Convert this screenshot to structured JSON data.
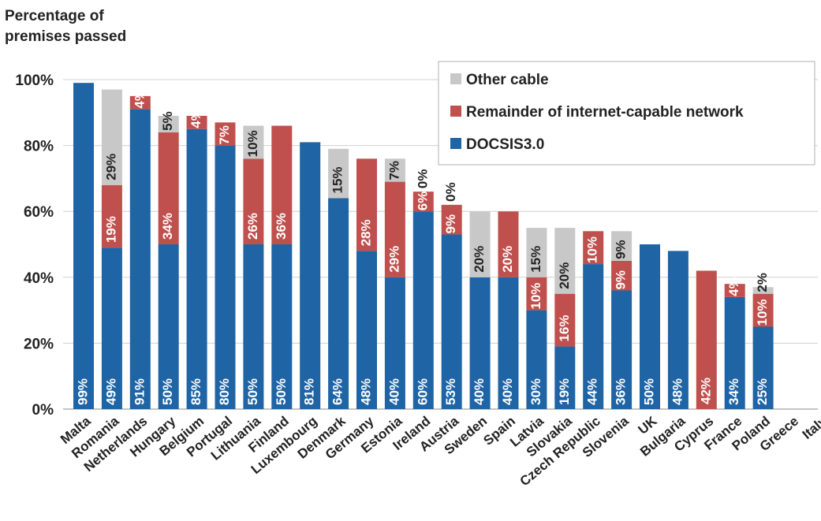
{
  "chart_data": {
    "type": "bar",
    "stacked": true,
    "ylabel_lines": [
      "Percentage of",
      "premises passed"
    ],
    "ylim": [
      0,
      100
    ],
    "yticks": [
      0,
      20,
      40,
      60,
      80,
      100
    ],
    "ytick_labels": [
      "0%",
      "20%",
      "40%",
      "60%",
      "80%",
      "100%"
    ],
    "grid": true,
    "legend_position": "top-right",
    "categories": [
      "Malta",
      "Romania",
      "Netherlands",
      "Hungary",
      "Belgium",
      "Portugal",
      "Lithuania",
      "Finland",
      "Luxembourg",
      "Denmark",
      "Germany",
      "Estonia",
      "Ireland",
      "Austria",
      "Sweden",
      "Spain",
      "Latvia",
      "Slovakia",
      "Czech Republic",
      "Slovenia",
      "UK",
      "Bulgaria",
      "Cyprus",
      "France",
      "Poland",
      "Greece",
      "Italy"
    ],
    "series": [
      {
        "name": "DOCSIS3.0",
        "color": "#1f64a5",
        "values": [
          99,
          49,
          91,
          50,
          85,
          80,
          50,
          50,
          81,
          64,
          48,
          40,
          60,
          53,
          40,
          40,
          30,
          19,
          44,
          36,
          50,
          48,
          0,
          34,
          25,
          0,
          0
        ],
        "labels": [
          "99%",
          "49%",
          "91%",
          "50%",
          "85%",
          "80%",
          "50%",
          "50%",
          "81%",
          "64%",
          "48%",
          "40%",
          "60%",
          "53%",
          "40%",
          "40%",
          "30%",
          "19%",
          "44%",
          "36%",
          "50%",
          "48%",
          "",
          "34%",
          "25%",
          "",
          ""
        ]
      },
      {
        "name": "Remainder of internet-capable network",
        "color": "#c0504d",
        "values": [
          0,
          19,
          4,
          34,
          4,
          7,
          26,
          36,
          0,
          0,
          28,
          29,
          6,
          9,
          0,
          20,
          10,
          16,
          10,
          9,
          0,
          0,
          42,
          4,
          10,
          0,
          0
        ],
        "labels": [
          "",
          "19%",
          "4%",
          "34%",
          "4%",
          "7%",
          "26%",
          "36%",
          "",
          "",
          "28%",
          "29%",
          "6%",
          "9%",
          "",
          "20%",
          "10%",
          "16%",
          "10%",
          "9%",
          "",
          "",
          "42%",
          "4%",
          "10%",
          "",
          ""
        ]
      },
      {
        "name": "Other cable",
        "color": "#c8c8c8",
        "values": [
          0,
          29,
          0,
          5,
          0,
          0,
          10,
          0,
          0,
          15,
          0,
          7,
          0,
          0,
          20,
          0,
          15,
          20,
          0,
          9,
          0,
          0,
          0,
          0,
          2,
          0,
          0
        ],
        "labels": [
          "",
          "29%",
          "",
          "5%",
          "",
          "",
          "10%",
          "",
          "",
          "15%",
          "",
          "7%",
          "0%",
          "0%",
          "20%",
          "",
          "15%",
          "20%",
          "",
          "9%",
          "",
          "",
          "",
          "",
          "2%",
          "",
          ""
        ]
      }
    ],
    "legend_order": [
      "Other cable",
      "Remainder of internet-capable network",
      "DOCSIS3.0"
    ]
  }
}
